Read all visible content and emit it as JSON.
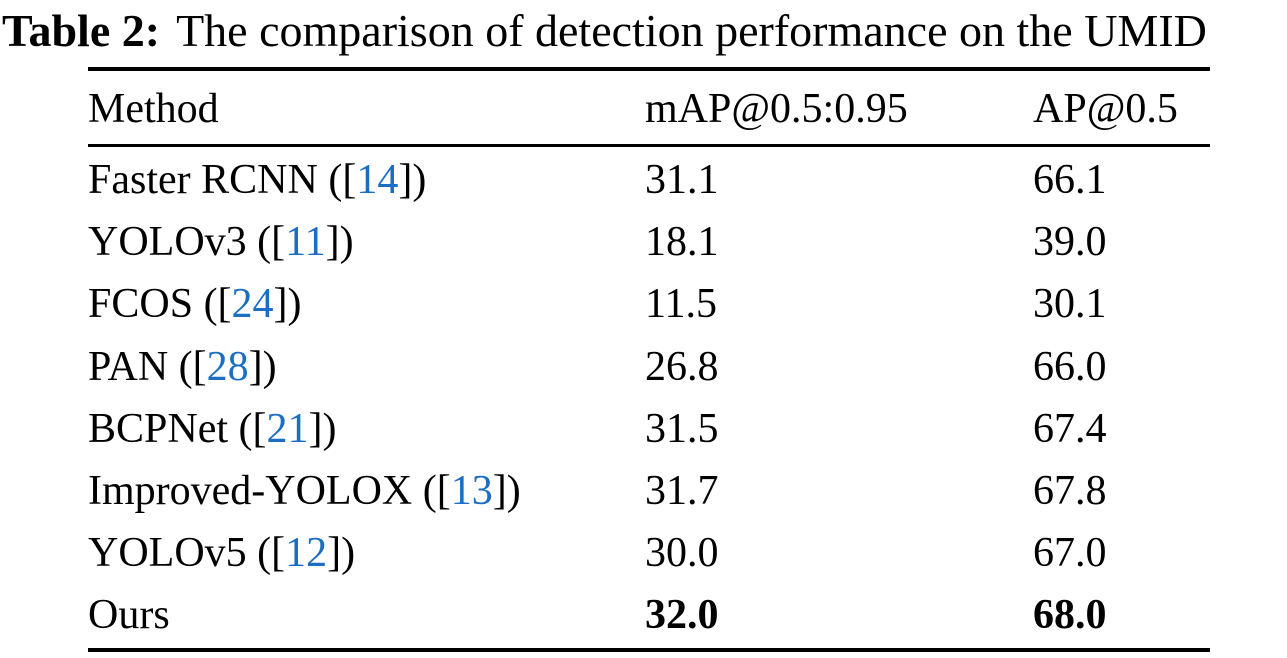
{
  "caption": {
    "label": "Table 2:",
    "text": "The comparison of detection performance on the UMID"
  },
  "colors": {
    "citation_link": "#1b6ec2",
    "text": "#000000",
    "background": "#ffffff",
    "rule": "#000000"
  },
  "table": {
    "columns": [
      "Method",
      "mAP@0.5:0.95",
      "AP@0.5"
    ],
    "rows": [
      {
        "method": "Faster RCNN",
        "cite_open": " ([",
        "cite": "14",
        "cite_close": "])",
        "map": "31.1",
        "ap": "66.1",
        "bold": false
      },
      {
        "method": "YOLOv3",
        "cite_open": " ([",
        "cite": "11",
        "cite_close": "])",
        "map": "18.1",
        "ap": "39.0",
        "bold": false
      },
      {
        "method": "FCOS",
        "cite_open": " ([",
        "cite": "24",
        "cite_close": "])",
        "map": "11.5",
        "ap": "30.1",
        "bold": false
      },
      {
        "method": "PAN",
        "cite_open": " ([",
        "cite": "28",
        "cite_close": "])",
        "map": "26.8",
        "ap": "66.0",
        "bold": false
      },
      {
        "method": "BCPNet",
        "cite_open": " ([",
        "cite": "21",
        "cite_close": "])",
        "map": "31.5",
        "ap": "67.4",
        "bold": false
      },
      {
        "method": "Improved-YOLOX",
        "cite_open": " ([",
        "cite": "13",
        "cite_close": "])",
        "map": "31.7",
        "ap": "67.8",
        "bold": false
      },
      {
        "method": "YOLOv5",
        "cite_open": " ([",
        "cite": "12",
        "cite_close": "])",
        "map": "30.0",
        "ap": "67.0",
        "bold": false
      },
      {
        "method": "Ours",
        "cite_open": "",
        "cite": "",
        "cite_close": "",
        "map": "32.0",
        "ap": "68.0",
        "bold": true
      }
    ]
  }
}
